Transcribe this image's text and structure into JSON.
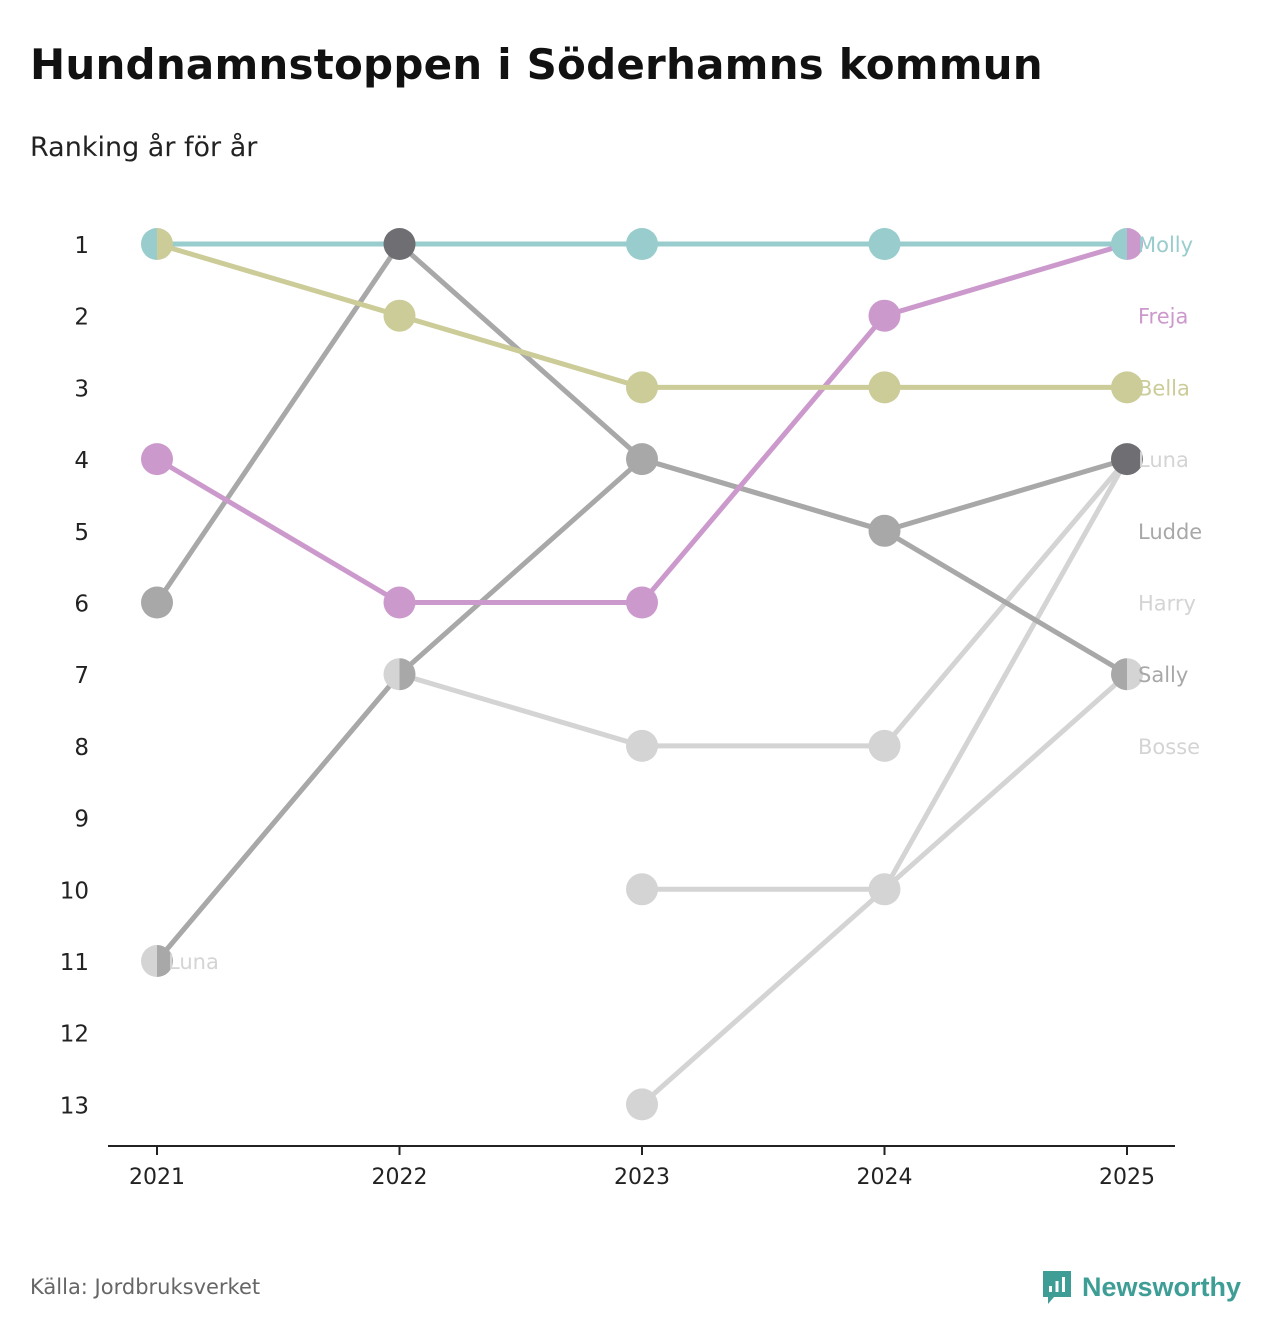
{
  "title": "Hundnamnstoppen i Söderhamns kommun",
  "subtitle": "Ranking år för år",
  "source": "Källa: Jordbruksverket",
  "brand": {
    "name": "Newsworthy",
    "icon": "newsworthy-logo-icon",
    "color": "#3e9e96"
  },
  "chart_data": {
    "type": "line",
    "x": [
      "2021",
      "2022",
      "2023",
      "2024",
      "2025"
    ],
    "ylim": [
      1,
      13
    ],
    "y_inverted": true,
    "yticks": [
      "1",
      "2",
      "3",
      "4",
      "5",
      "6",
      "7",
      "8",
      "9",
      "10",
      "11",
      "12",
      "13"
    ],
    "xlabel": "",
    "ylabel": "",
    "grid": false,
    "series": [
      {
        "name": "Molly",
        "color": "#99cccc",
        "values": [
          1,
          1,
          1,
          1,
          1
        ],
        "end_label": "Molly"
      },
      {
        "name": "Freja",
        "color": "#cc99cc",
        "values": [
          4,
          6,
          6,
          2,
          1
        ],
        "end_label": "Freja"
      },
      {
        "name": "Bella",
        "color": "#cccc99",
        "values": [
          1,
          2,
          3,
          3,
          3
        ],
        "end_label": "Bella"
      },
      {
        "name": "Luna",
        "color": "#d4d4d4",
        "values": [
          11,
          7,
          8,
          8,
          4
        ],
        "end_label": "Luna",
        "start_label": "Luna"
      },
      {
        "name": "Ludde",
        "color": "#a8a8a8",
        "values": [
          6,
          1,
          4,
          5,
          7
        ],
        "end_label": "Ludde"
      },
      {
        "name": "Harry",
        "color": "#d4d4d4",
        "values": [
          null,
          null,
          13,
          10,
          7
        ],
        "end_label": "Harry"
      },
      {
        "name": "Sally",
        "color": "#a8a8a8",
        "values": [
          11,
          7,
          4,
          5,
          4
        ],
        "end_label": "Sally"
      },
      {
        "name": "Bosse",
        "color": "#d4d4d4",
        "values": [
          null,
          null,
          10,
          10,
          4
        ],
        "end_label": "Bosse"
      }
    ],
    "end_labels": [
      {
        "text": "Molly",
        "rank": 1,
        "color": "#99cccc"
      },
      {
        "text": "Freja",
        "rank": 2,
        "color": "#cc99cc"
      },
      {
        "text": "Bella",
        "rank": 3,
        "color": "#cccc99"
      },
      {
        "text": "Luna",
        "rank": 4,
        "color": "#d4d4d4"
      },
      {
        "text": "Ludde",
        "rank": 5,
        "color": "#a8a8a8"
      },
      {
        "text": "Harry",
        "rank": 6,
        "color": "#d4d4d4"
      },
      {
        "text": "Sally",
        "rank": 7,
        "color": "#a8a8a8"
      },
      {
        "text": "Bosse",
        "rank": 8,
        "color": "#d4d4d4"
      }
    ],
    "start_labels": [
      {
        "text": "Luna",
        "rank": 11,
        "color": "#d4d4d4"
      }
    ],
    "dark_points": [
      {
        "x": "2022",
        "rank": 1
      },
      {
        "x": "2025",
        "rank": 4
      }
    ],
    "dark_color": "#6e6e73"
  }
}
